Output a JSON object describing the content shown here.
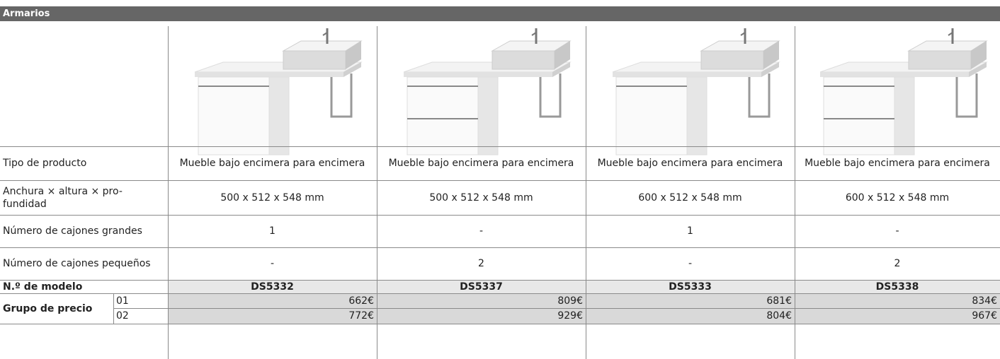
{
  "header": {
    "title": "Armarios"
  },
  "table": {
    "rows": [
      {
        "label": "Tipo de producto",
        "cells": [
          "Mueble bajo encimera para encimera",
          "Mueble bajo encimera para encimera",
          "Mueble bajo encimera para encimera",
          "Mueble bajo encimera para encimera"
        ]
      },
      {
        "label": "Anchura × altura × pro-fundidad",
        "cells": [
          "500 x 512 x 548 mm",
          "500 x 512 x 548 mm",
          "600 x 512 x 548 mm",
          "600 x 512 x 548 mm"
        ]
      },
      {
        "label": "Número de cajones grandes",
        "cells": [
          "1",
          "-",
          "1",
          "-"
        ]
      },
      {
        "label": "Número de cajones pequeños",
        "cells": [
          "-",
          "2",
          "-",
          "2"
        ]
      }
    ],
    "model": {
      "label": "N.º de modelo",
      "cells": [
        "DS5332",
        "DS5337",
        "DS5333",
        "DS5338"
      ]
    },
    "prices": {
      "label": "Grupo de precio",
      "groups": [
        {
          "code": "01",
          "cells": [
            "662€",
            "809€",
            "681€",
            "834€"
          ]
        },
        {
          "code": "02",
          "cells": [
            "772€",
            "929€",
            "804€",
            "967€"
          ]
        }
      ]
    }
  }
}
